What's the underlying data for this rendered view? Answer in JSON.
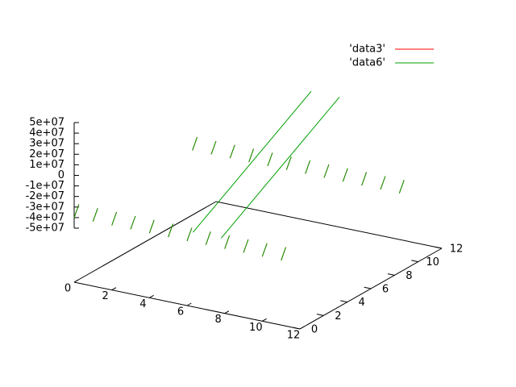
{
  "chart_data": {
    "type": "line3d",
    "series": [
      {
        "name": "'data3'",
        "color": "#ff0000",
        "x": [
          0,
          0,
          null,
          1,
          1,
          null,
          2,
          2,
          null,
          3,
          3,
          null,
          4,
          4,
          null,
          5,
          5,
          null,
          6,
          6,
          null,
          7,
          7,
          null,
          8,
          8,
          null,
          9,
          9,
          null,
          10,
          10,
          null,
          11,
          11,
          null,
          0,
          0,
          null,
          1,
          1,
          null,
          2,
          2,
          null,
          3,
          3,
          null,
          4,
          4,
          null,
          5,
          5,
          null,
          6,
          6,
          null,
          7,
          7,
          null,
          8,
          8,
          null,
          9,
          9,
          null,
          10,
          10,
          null,
          11,
          11,
          null
        ],
        "y": [
          0,
          0.4,
          null,
          0,
          0.4,
          null,
          0,
          0.4,
          null,
          0,
          0.4,
          null,
          0,
          0.4,
          null,
          0,
          0.4,
          null,
          0,
          0.4,
          null,
          0,
          0.4,
          null,
          0,
          0.4,
          null,
          0,
          0.4,
          null,
          0,
          0.4,
          null,
          0,
          0.4,
          null,
          10,
          10.4,
          null,
          10,
          10.4,
          null,
          10,
          10.4,
          null,
          10,
          10.4,
          null,
          10,
          10.4,
          null,
          10,
          10.4,
          null,
          10,
          10.4,
          null,
          10,
          10.4,
          null,
          10,
          10.4,
          null,
          10,
          10.4,
          null,
          10,
          10.4,
          null,
          10,
          10.4,
          null
        ],
        "z": [
          -40000000,
          -30000000,
          null,
          -40000000,
          -30000000,
          null,
          -40000000,
          -30000000,
          null,
          -40000000,
          -30000000,
          null,
          -40000000,
          -30000000,
          null,
          -40000000,
          -30000000,
          null,
          -40000000,
          -30000000,
          null,
          -40000000,
          -30000000,
          null,
          -40000000,
          -30000000,
          null,
          -40000000,
          -30000000,
          null,
          -40000000,
          -30000000,
          null,
          -40000000,
          -30000000,
          null,
          -40000000,
          -30000000,
          null,
          -40000000,
          -30000000,
          null,
          -40000000,
          -30000000,
          null,
          -40000000,
          -30000000,
          null,
          -40000000,
          -30000000,
          null,
          -40000000,
          -30000000,
          null,
          -40000000,
          -30000000,
          null,
          -40000000,
          -30000000,
          null,
          -40000000,
          -30000000,
          null,
          -40000000,
          -30000000,
          null,
          -40000000,
          -30000000,
          null,
          -40000000,
          -30000000,
          null
        ]
      },
      {
        "name": "'data6'",
        "color": "#00a000",
        "x": [
          0,
          0,
          null,
          1,
          1,
          null,
          2,
          2,
          null,
          3,
          3,
          null,
          4,
          4,
          null,
          5,
          5,
          null,
          6,
          6,
          null,
          7,
          7,
          null,
          8,
          8,
          null,
          9,
          9,
          null,
          10,
          10,
          null,
          11,
          11,
          null,
          0,
          0,
          null,
          1,
          1,
          null,
          2,
          2,
          null,
          3,
          3,
          null,
          4,
          4,
          null,
          5,
          5,
          null,
          6,
          6,
          null,
          7,
          7,
          null,
          8,
          8,
          null,
          9,
          9,
          null,
          10,
          10,
          null,
          11,
          11,
          null,
          6,
          6,
          null,
          7.5,
          7.5
        ],
        "y": [
          0,
          0.4,
          null,
          0,
          0.4,
          null,
          0,
          0.4,
          null,
          0,
          0.4,
          null,
          0,
          0.4,
          null,
          0,
          0.4,
          null,
          0,
          0.4,
          null,
          0,
          0.4,
          null,
          0,
          0.4,
          null,
          0,
          0.4,
          null,
          0,
          0.4,
          null,
          0,
          0.4,
          null,
          10,
          10.4,
          null,
          10,
          10.4,
          null,
          10,
          10.4,
          null,
          10,
          10.4,
          null,
          10,
          10.4,
          null,
          10,
          10.4,
          null,
          10,
          10.4,
          null,
          10,
          10.4,
          null,
          10,
          10.4,
          null,
          10,
          10.4,
          null,
          10,
          10.4,
          null,
          10,
          10.4,
          null,
          0.5,
          10.5,
          null,
          0.5,
          10.5
        ],
        "z": [
          -40000000,
          -30000000,
          null,
          -40000000,
          -30000000,
          null,
          -40000000,
          -30000000,
          null,
          -40000000,
          -30000000,
          null,
          -40000000,
          -30000000,
          null,
          -40000000,
          -30000000,
          null,
          -40000000,
          -30000000,
          null,
          -40000000,
          -30000000,
          null,
          -40000000,
          -30000000,
          null,
          -40000000,
          -30000000,
          null,
          -40000000,
          -30000000,
          null,
          -40000000,
          -30000000,
          null,
          -40000000,
          -30000000,
          null,
          -40000000,
          -30000000,
          null,
          -40000000,
          -30000000,
          null,
          -40000000,
          -30000000,
          null,
          -40000000,
          -30000000,
          null,
          -40000000,
          -30000000,
          null,
          -40000000,
          -30000000,
          null,
          -40000000,
          -30000000,
          null,
          -40000000,
          -30000000,
          null,
          -40000000,
          -30000000,
          null,
          -40000000,
          -30000000,
          null,
          -40000000,
          -30000000,
          null,
          -35000000,
          35000000,
          null,
          -35000000,
          35000000
        ]
      }
    ],
    "xlim": [
      0,
      12
    ],
    "xticks": [
      0,
      2,
      4,
      6,
      8,
      10,
      12
    ],
    "ylim": [
      0,
      12
    ],
    "yticks": [
      0,
      2,
      4,
      6,
      8,
      10,
      12
    ],
    "zlim": [
      -50000000,
      50000000
    ],
    "zticks": [
      {
        "value": 50000000,
        "label": "5e+07"
      },
      {
        "value": 40000000,
        "label": "4e+07"
      },
      {
        "value": 30000000,
        "label": "3e+07"
      },
      {
        "value": 20000000,
        "label": "2e+07"
      },
      {
        "value": 10000000,
        "label": "1e+07"
      },
      0,
      {
        "value": -10000000,
        "label": "-1e+07"
      },
      {
        "value": -20000000,
        "label": "-2e+07"
      },
      {
        "value": -30000000,
        "label": "-3e+07"
      },
      {
        "value": -40000000,
        "label": "-4e+07"
      },
      {
        "value": -50000000,
        "label": "-5e+07"
      }
    ],
    "legend": "top-right"
  }
}
